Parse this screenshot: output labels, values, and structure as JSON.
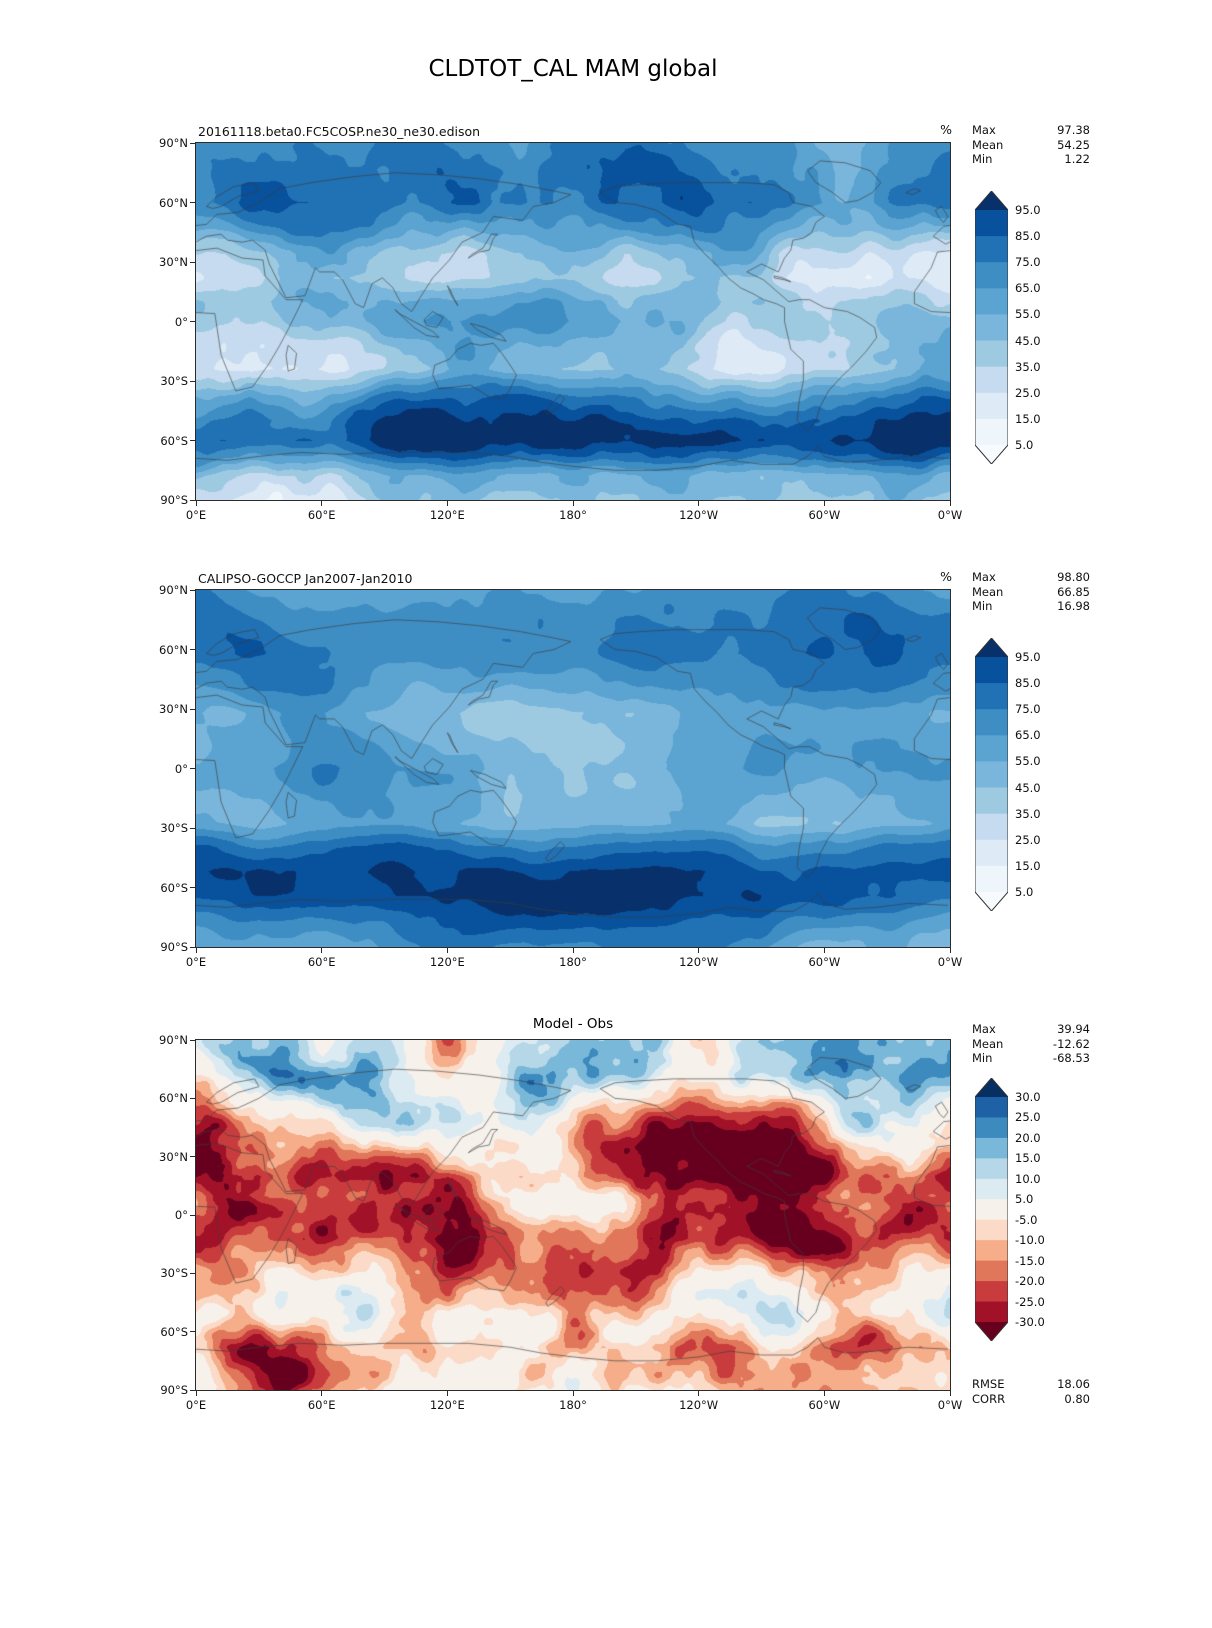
{
  "page": {
    "title": "CLDTOT_CAL MAM global"
  },
  "axes": {
    "lat_ticks": [
      "90°N",
      "60°N",
      "30°N",
      "0°",
      "30°S",
      "60°S",
      "90°S"
    ],
    "lon_ticks": [
      "0°E",
      "60°E",
      "120°E",
      "180°",
      "120°W",
      "60°W",
      "0°W"
    ]
  },
  "panels": [
    {
      "subtitle": "20161118.beta0.FC5COSP.ne30_ne30.edison",
      "units": "%",
      "stats": [
        {
          "label": "Max",
          "value": "97.38"
        },
        {
          "label": "Mean",
          "value": "54.25"
        },
        {
          "label": "Min",
          "value": "1.22"
        }
      ]
    },
    {
      "subtitle": "CALIPSO-GOCCP Jan2007-Jan2010",
      "units": "%",
      "stats": [
        {
          "label": "Max",
          "value": "98.80"
        },
        {
          "label": "Mean",
          "value": "66.85"
        },
        {
          "label": "Min",
          "value": "16.98"
        }
      ]
    },
    {
      "subtitle": "Model - Obs",
      "stats": [
        {
          "label": "Max",
          "value": "39.94"
        },
        {
          "label": "Mean",
          "value": "-12.62"
        },
        {
          "label": "Min",
          "value": "-68.53"
        }
      ],
      "footer": [
        {
          "label": "RMSE",
          "value": "18.06"
        },
        {
          "label": "CORR",
          "value": "0.80"
        }
      ]
    }
  ],
  "chart_data": [
    {
      "type": "heatmap",
      "title": "20161118.beta0.FC5COSP.ne30_ne30.edison",
      "variable": "CLDTOT_CAL",
      "season": "MAM",
      "region": "global",
      "units": "%",
      "projection": "equirectangular",
      "lon_range": [
        0,
        360
      ],
      "lat_range": [
        -90,
        90
      ],
      "x_ticks": [
        "0°E",
        "60°E",
        "120°E",
        "180°",
        "120°W",
        "60°W",
        "0°W"
      ],
      "y_ticks": [
        "90°N",
        "60°N",
        "30°N",
        "0°",
        "30°S",
        "60°S",
        "90°S"
      ],
      "colorbar_levels": [
        95,
        85,
        75,
        65,
        55,
        45,
        35,
        25,
        15,
        5
      ],
      "colorbar_colors": [
        "#08306b",
        "#08519c",
        "#2171b5",
        "#3e8ec4",
        "#5ba3d0",
        "#7ab6db",
        "#9ecae1",
        "#c6dbef",
        "#deebf7",
        "#eef5fb",
        "#f7fbff"
      ],
      "colorbar_extend": "both",
      "stats": {
        "max": 97.38,
        "mean": 54.25,
        "min": 1.22
      }
    },
    {
      "type": "heatmap",
      "title": "CALIPSO-GOCCP Jan2007-Jan2010",
      "variable": "CLDTOT_CAL",
      "season": "MAM",
      "region": "global",
      "units": "%",
      "projection": "equirectangular",
      "lon_range": [
        0,
        360
      ],
      "lat_range": [
        -90,
        90
      ],
      "x_ticks": [
        "0°E",
        "60°E",
        "120°E",
        "180°",
        "120°W",
        "60°W",
        "0°W"
      ],
      "y_ticks": [
        "90°N",
        "60°N",
        "30°N",
        "0°",
        "30°S",
        "60°S",
        "90°S"
      ],
      "colorbar_levels": [
        95,
        85,
        75,
        65,
        55,
        45,
        35,
        25,
        15,
        5
      ],
      "colorbar_colors": [
        "#08306b",
        "#08519c",
        "#2171b5",
        "#3e8ec4",
        "#5ba3d0",
        "#7ab6db",
        "#9ecae1",
        "#c6dbef",
        "#deebf7",
        "#eef5fb",
        "#f7fbff"
      ],
      "colorbar_extend": "both",
      "stats": {
        "max": 98.8,
        "mean": 66.85,
        "min": 16.98
      }
    },
    {
      "type": "heatmap",
      "title": "Model - Obs",
      "variable": "CLDTOT_CAL difference",
      "season": "MAM",
      "region": "global",
      "units": "%",
      "projection": "equirectangular",
      "lon_range": [
        0,
        360
      ],
      "lat_range": [
        -90,
        90
      ],
      "x_ticks": [
        "0°E",
        "60°E",
        "120°E",
        "180°",
        "120°W",
        "60°W",
        "0°W"
      ],
      "y_ticks": [
        "90°N",
        "60°N",
        "30°N",
        "0°",
        "30°S",
        "60°S",
        "90°S"
      ],
      "colorbar_levels": [
        30,
        25,
        20,
        15,
        10,
        5,
        -5,
        -10,
        -15,
        -20,
        -25,
        -30
      ],
      "colorbar_colors": [
        "#053061",
        "#1e61a5",
        "#3c8abe",
        "#7ab8d9",
        "#b5d7e8",
        "#dcebf2",
        "#f7f1ec",
        "#fbdbc8",
        "#f5ad8a",
        "#e0765a",
        "#c93c3d",
        "#a11228",
        "#67001f"
      ],
      "colorbar_extend": "both",
      "stats": {
        "max": 39.94,
        "mean": -12.62,
        "min": -68.53
      },
      "rmse": 18.06,
      "corr": 0.8
    }
  ]
}
